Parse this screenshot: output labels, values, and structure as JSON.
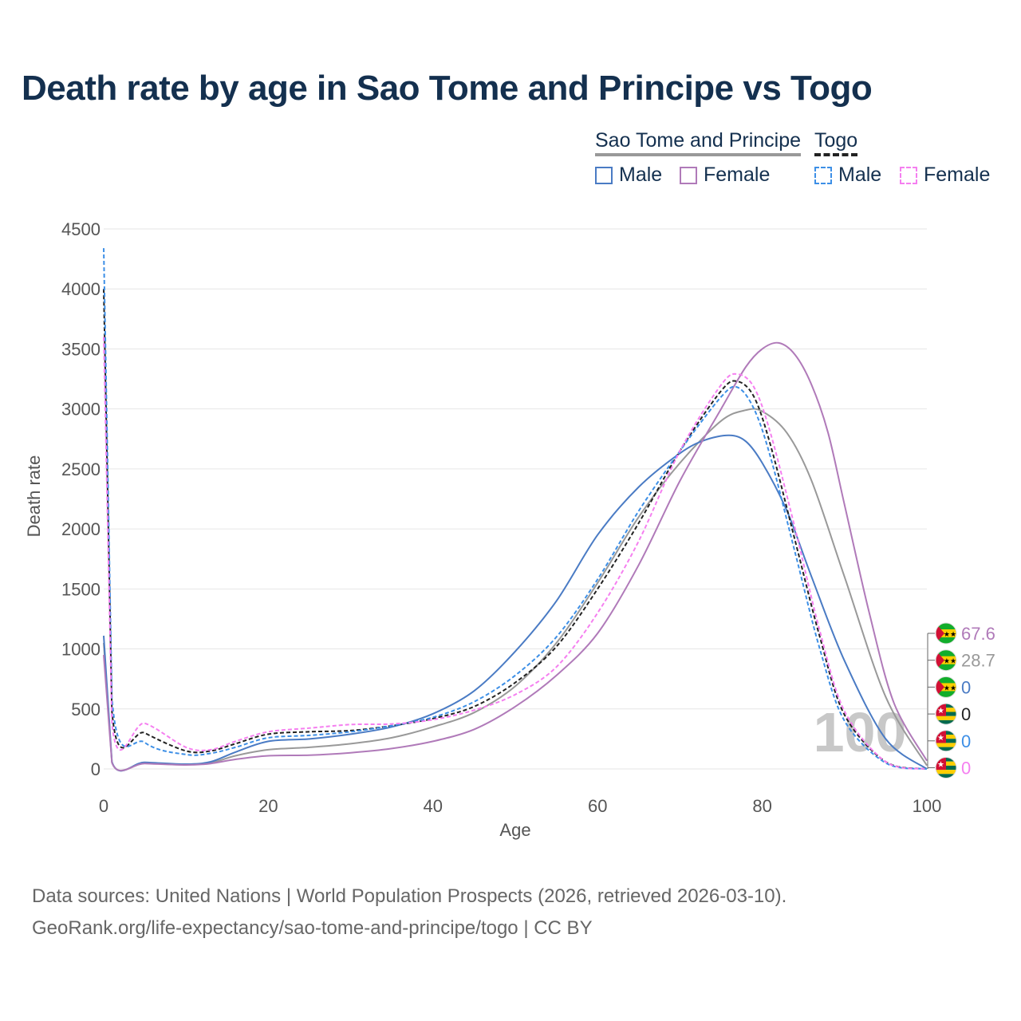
{
  "title": "Death rate by age in Sao Tome and Principe vs Togo",
  "legend": {
    "groups": [
      {
        "name": "Sao Tome and Principe",
        "items": [
          {
            "label": "Male",
            "color": "#4a7bc4",
            "dash": false
          },
          {
            "label": "Female",
            "color": "#b07ab9",
            "dash": false
          }
        ]
      },
      {
        "name": "Togo",
        "items": [
          {
            "label": "Male",
            "color": "#3d8fe6",
            "dash": true
          },
          {
            "label": "Female",
            "color": "#f57ff0",
            "dash": true
          }
        ]
      }
    ]
  },
  "watermark": "100",
  "footer": {
    "line1": "Data sources: United Nations | World Population Prospects (2026, retrieved 2026-03-10).",
    "line2": "GeoRank.org/life-expectancy/sao-tome-and-principe/togo | CC BY"
  },
  "end_labels": [
    {
      "value": "67.6",
      "color": "#b07ab9",
      "flag": "sao-tome-flag"
    },
    {
      "value": "28.7",
      "color": "#999999",
      "flag": "sao-tome-flag"
    },
    {
      "value": "0",
      "color": "#4a7bc4",
      "flag": "sao-tome-flag"
    },
    {
      "value": "0",
      "color": "#222222",
      "flag": "togo-flag"
    },
    {
      "value": "0",
      "color": "#3d8fe6",
      "flag": "togo-flag"
    },
    {
      "value": "0",
      "color": "#f57ff0",
      "flag": "togo-flag"
    }
  ],
  "chart_data": {
    "type": "line",
    "xlabel": "Age",
    "ylabel": "Death rate",
    "xlim": [
      0,
      100
    ],
    "ylim": [
      0,
      4500
    ],
    "xticks": [
      0,
      20,
      40,
      60,
      80,
      100
    ],
    "yticks": [
      0,
      500,
      1000,
      1500,
      2000,
      2500,
      3000,
      3500,
      4000,
      4500
    ],
    "grid": true,
    "series": [
      {
        "name": "Sao Tome and Principe Total",
        "color": "#999999",
        "dash": false,
        "x": [
          0,
          1,
          5,
          10,
          13,
          16,
          20,
          25,
          30,
          35,
          40,
          45,
          50,
          55,
          60,
          65,
          70,
          75,
          78,
          80,
          83,
          86,
          90,
          95,
          100
        ],
        "y": [
          1050,
          58,
          50,
          38,
          50,
          110,
          160,
          180,
          210,
          260,
          350,
          470,
          690,
          1050,
          1550,
          2100,
          2550,
          2900,
          2990,
          2980,
          2800,
          2400,
          1600,
          600,
          28.7
        ]
      },
      {
        "name": "Sao Tome and Principe Male",
        "color": "#4a7bc4",
        "dash": false,
        "x": [
          0,
          1,
          5,
          10,
          13,
          16,
          20,
          25,
          30,
          35,
          40,
          45,
          50,
          55,
          60,
          65,
          70,
          73,
          76,
          78,
          80,
          83,
          86,
          90,
          95,
          100
        ],
        "y": [
          1110,
          60,
          55,
          40,
          60,
          140,
          230,
          250,
          290,
          350,
          460,
          650,
          980,
          1400,
          1950,
          2350,
          2630,
          2740,
          2780,
          2730,
          2550,
          2150,
          1600,
          900,
          250,
          0
        ]
      },
      {
        "name": "Sao Tome and Principe Female",
        "color": "#b07ab9",
        "dash": false,
        "x": [
          0,
          1,
          5,
          10,
          13,
          16,
          20,
          25,
          30,
          35,
          40,
          45,
          50,
          55,
          60,
          65,
          70,
          75,
          78,
          80,
          82,
          84,
          86,
          88,
          90,
          93,
          96,
          100
        ],
        "y": [
          950,
          52,
          45,
          33,
          45,
          80,
          110,
          115,
          135,
          170,
          230,
          330,
          520,
          780,
          1130,
          1700,
          2400,
          3000,
          3350,
          3500,
          3550,
          3450,
          3200,
          2800,
          2200,
          1300,
          550,
          67.6
        ]
      },
      {
        "name": "Togo Total",
        "color": "#222222",
        "dash": true,
        "x": [
          0,
          1,
          5,
          10,
          13,
          16,
          20,
          25,
          30,
          35,
          40,
          45,
          50,
          55,
          60,
          65,
          70,
          75,
          77,
          79,
          81,
          84,
          87,
          90,
          95,
          100
        ],
        "y": [
          4000,
          480,
          300,
          150,
          150,
          210,
          290,
          310,
          320,
          360,
          420,
          520,
          720,
          1020,
          1500,
          2050,
          2650,
          3150,
          3230,
          3100,
          2700,
          1900,
          1100,
          450,
          60,
          0
        ]
      },
      {
        "name": "Togo Male",
        "color": "#3d8fe6",
        "dash": true,
        "x": [
          0,
          1,
          5,
          10,
          13,
          16,
          20,
          25,
          30,
          35,
          40,
          45,
          50,
          55,
          60,
          65,
          70,
          75,
          77,
          79,
          81,
          84,
          87,
          90,
          95,
          100
        ],
        "y": [
          4340,
          590,
          220,
          120,
          130,
          180,
          260,
          280,
          310,
          360,
          430,
          560,
          780,
          1100,
          1580,
          2150,
          2650,
          3100,
          3180,
          3000,
          2600,
          1800,
          1000,
          400,
          50,
          0
        ]
      },
      {
        "name": "Togo Female",
        "color": "#f57ff0",
        "dash": true,
        "x": [
          0,
          1,
          5,
          10,
          13,
          16,
          20,
          25,
          30,
          35,
          40,
          45,
          50,
          55,
          60,
          65,
          70,
          75,
          77,
          79,
          81,
          84,
          87,
          90,
          95,
          100
        ],
        "y": [
          3600,
          380,
          380,
          180,
          160,
          230,
          310,
          340,
          370,
          375,
          410,
          490,
          620,
          850,
          1300,
          1900,
          2650,
          3200,
          3290,
          3180,
          2800,
          2000,
          1150,
          480,
          60,
          0
        ]
      }
    ]
  }
}
